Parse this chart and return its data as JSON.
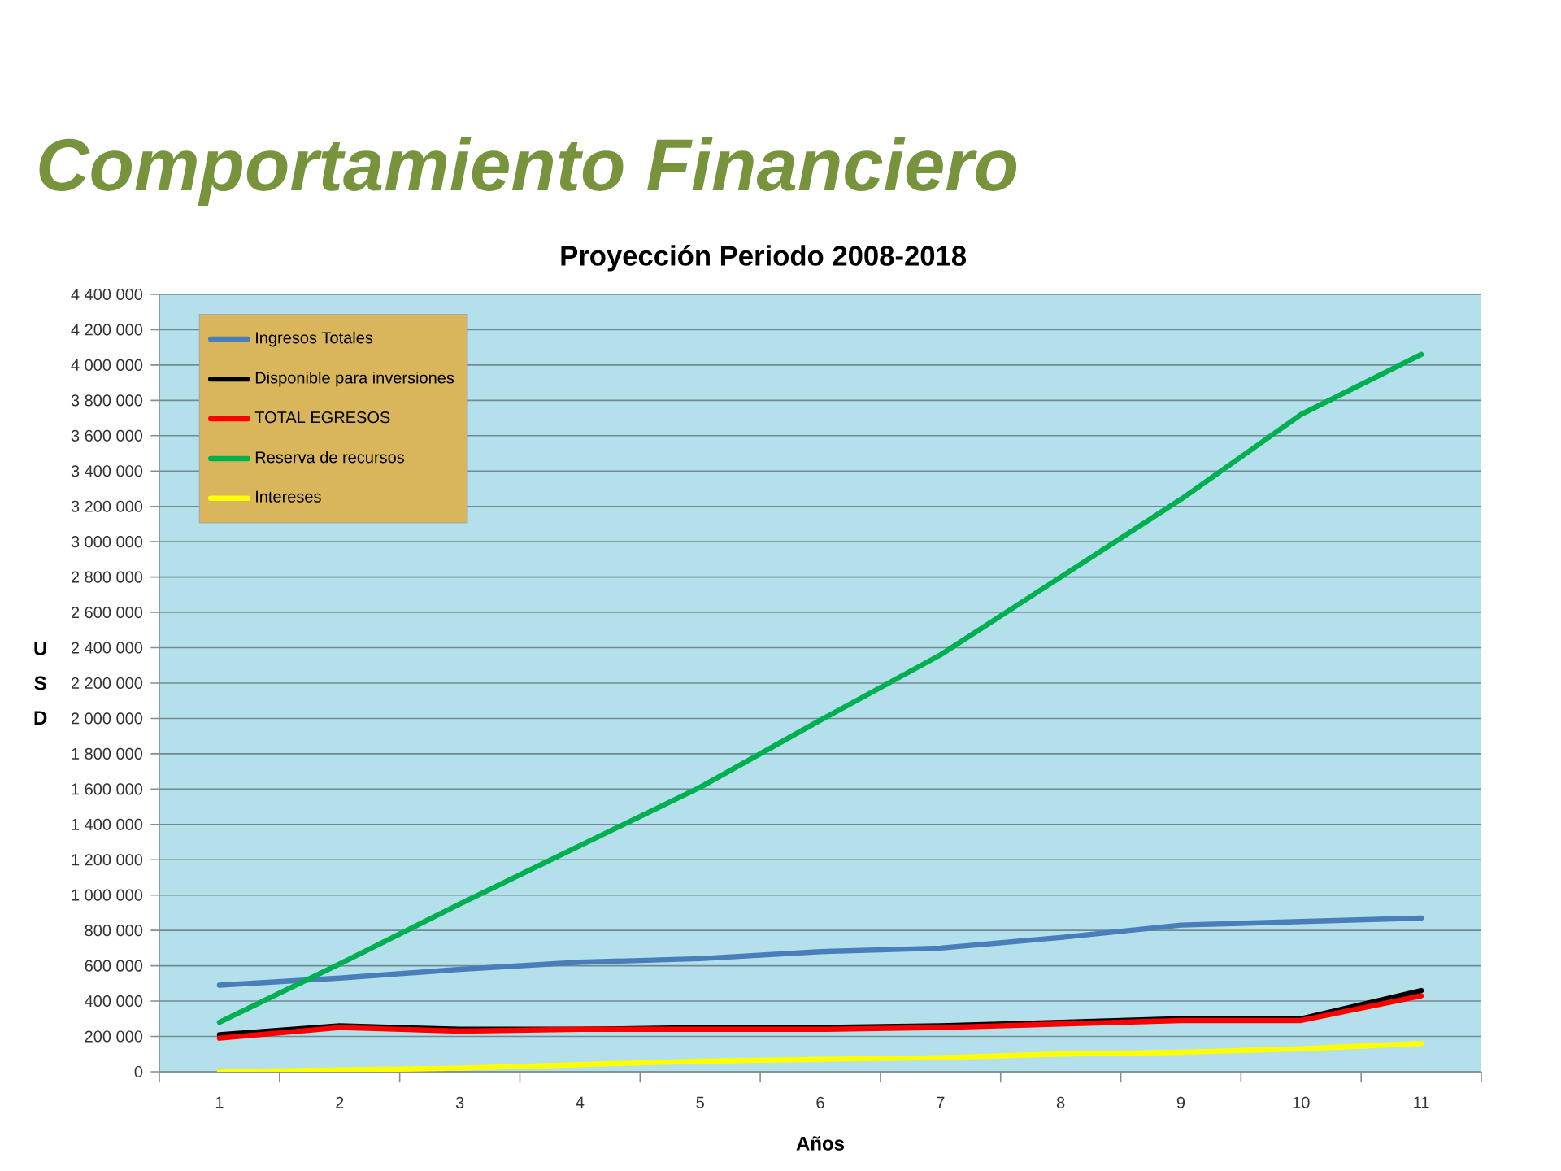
{
  "chart_data": {
    "type": "line",
    "title": "Comportamiento Financiero",
    "subtitle": "Proyección Periodo 2008-2018",
    "xlabel": "Años",
    "ylabel": "U S D",
    "categories": [
      "1",
      "2",
      "3",
      "4",
      "5",
      "6",
      "7",
      "8",
      "9",
      "10",
      "11"
    ],
    "series": [
      {
        "name": "Ingresos Totales",
        "color": "#4a7ebb",
        "values": [
          490000,
          530000,
          580000,
          620000,
          640000,
          680000,
          700000,
          760000,
          830000,
          850000,
          870000
        ]
      },
      {
        "name": "Disponible para inversiones",
        "color": "#000000",
        "values": [
          210000,
          260000,
          240000,
          240000,
          250000,
          250000,
          260000,
          280000,
          300000,
          300000,
          460000
        ]
      },
      {
        "name": "TOTAL EGRESOS",
        "color": "#ff0000",
        "values": [
          190000,
          250000,
          230000,
          240000,
          240000,
          240000,
          250000,
          270000,
          290000,
          290000,
          430000
        ]
      },
      {
        "name": "Reserva de recursos",
        "color": "#00b050",
        "values": [
          280000,
          610000,
          950000,
          1280000,
          1610000,
          1990000,
          2360000,
          2800000,
          3240000,
          3720000,
          4060000
        ]
      },
      {
        "name": "Intereses",
        "color": "#ffff00",
        "values": [
          0,
          10000,
          20000,
          40000,
          60000,
          70000,
          80000,
          100000,
          110000,
          130000,
          160000
        ]
      }
    ],
    "ylim": [
      0,
      4400000
    ],
    "yticks": [
      0,
      {
        "value": 200000,
        "label": "200 000"
      },
      {
        "value": 400000,
        "label": "400 000"
      },
      {
        "value": 600000,
        "label": "600 000"
      },
      {
        "value": 800000,
        "label": "800 000"
      },
      {
        "value": 1000000,
        "label": "1 000 000"
      },
      {
        "value": 1200000,
        "label": "1 200 000"
      },
      {
        "value": 1400000,
        "label": "1 400 000"
      },
      {
        "value": 1600000,
        "label": "1 600 000"
      },
      {
        "value": 1800000,
        "label": "1 800 000"
      },
      {
        "value": 2000000,
        "label": "2 000 000"
      },
      {
        "value": 2200000,
        "label": "2 200 000"
      },
      {
        "value": 2400000,
        "label": "2 400 000"
      },
      {
        "value": 2600000,
        "label": "2 600 000"
      },
      {
        "value": 2800000,
        "label": "2 800 000"
      },
      {
        "value": 3000000,
        "label": "3 000 000"
      },
      {
        "value": 3200000,
        "label": "3 200 000"
      },
      {
        "value": 3400000,
        "label": "3 400 000"
      },
      {
        "value": 3600000,
        "label": "3 600 000"
      },
      {
        "value": 3800000,
        "label": "3 800 000"
      },
      {
        "value": 4000000,
        "label": "4 000 000"
      },
      {
        "value": 4200000,
        "label": "4 200 000"
      },
      {
        "value": 4400000,
        "label": "4 400 000"
      }
    ],
    "grid": "y",
    "legend": "top left",
    "marker": "none",
    "line_style": "solid"
  }
}
